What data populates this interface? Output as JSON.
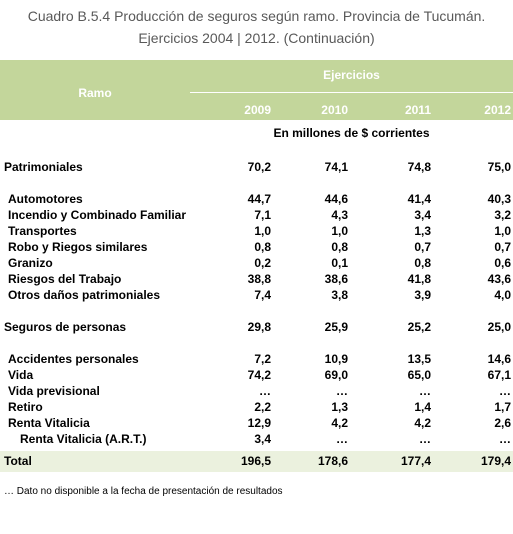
{
  "header": {
    "title": "Cuadro B.5.4 Producción de seguros según ramo. Provincia de Tucumán.",
    "subtitle": "Ejercicios 2004 | 2012. (Continuación)"
  },
  "table": {
    "row_header": "Ramo",
    "column_group": "Ejercicios",
    "columns": [
      "2009",
      "2010",
      "2011",
      "2012"
    ],
    "unit": "En millones de $ corrientes",
    "groups": [
      {
        "label": "Patrimoniales",
        "values": [
          "70,2",
          "74,1",
          "74,8",
          "75,0"
        ],
        "items": [
          {
            "label": "Automotores",
            "values": [
              "44,7",
              "44,6",
              "41,4",
              "40,3"
            ]
          },
          {
            "label": "Incendio y Combinado Familiar",
            "values": [
              "7,1",
              "4,3",
              "3,4",
              "3,2"
            ]
          },
          {
            "label": "Transportes",
            "values": [
              "1,0",
              "1,0",
              "1,3",
              "1,0"
            ]
          },
          {
            "label": "Robo y Riegos similares",
            "values": [
              "0,8",
              "0,8",
              "0,7",
              "0,7"
            ]
          },
          {
            "label": "Granizo",
            "values": [
              "0,2",
              "0,1",
              "0,8",
              "0,6"
            ]
          },
          {
            "label": "Riesgos del Trabajo",
            "values": [
              "38,8",
              "38,6",
              "41,8",
              "43,6"
            ]
          },
          {
            "label": "Otros daños patrimoniales",
            "values": [
              "7,4",
              "3,8",
              "3,9",
              "4,0"
            ]
          }
        ]
      },
      {
        "label": "Seguros de personas",
        "values": [
          "29,8",
          "25,9",
          "25,2",
          "25,0"
        ],
        "items": [
          {
            "label": "Accidentes personales",
            "values": [
              "7,2",
              "10,9",
              "13,5",
              "14,6"
            ]
          },
          {
            "label": "Vida",
            "values": [
              "74,2",
              "69,0",
              "65,0",
              "67,1"
            ]
          },
          {
            "label": "Vida previsional",
            "values": [
              "…",
              "…",
              "…",
              "…"
            ]
          },
          {
            "label": "Retiro",
            "values": [
              "2,2",
              "1,3",
              "1,4",
              "1,7"
            ]
          },
          {
            "label": "Renta Vitalicia",
            "values": [
              "12,9",
              "4,2",
              "4,2",
              "2,6"
            ],
            "items": [
              {
                "label": "Renta Vitalicia (A.R.T.)",
                "values": [
                  "3,4",
                  "…",
                  "…",
                  "…"
                ]
              }
            ]
          }
        ]
      }
    ],
    "total": {
      "label": "Total",
      "values": [
        "196,5",
        "178,6",
        "177,4",
        "179,4"
      ]
    }
  },
  "footnote": "… Dato no disponible a la fecha de presentación de resultados"
}
